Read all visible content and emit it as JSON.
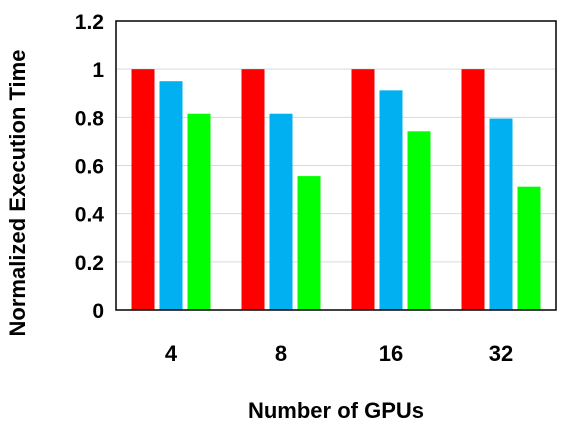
{
  "chart_data": {
    "type": "bar",
    "categories": [
      "4",
      "8",
      "16",
      "32"
    ],
    "series": [
      {
        "values": [
          1.0,
          1.0,
          1.0,
          1.0
        ],
        "color": "#ff0000"
      },
      {
        "values": [
          0.95,
          0.815,
          0.912,
          0.795
        ],
        "color": "#00b0f0"
      },
      {
        "values": [
          0.815,
          0.556,
          0.742,
          0.512
        ],
        "color": "#00ff00"
      }
    ],
    "xlabel": "Number of GPUs",
    "ylabel": "Normalized Execution Time",
    "ylim": [
      0,
      1.2
    ],
    "yticks": [
      0,
      0.2,
      0.4,
      0.6,
      0.8,
      1,
      1.2
    ],
    "ytick_labels": [
      "0",
      "0.2",
      "0.4",
      "0.6",
      "0.8",
      "1",
      "1.2"
    ],
    "grid": true,
    "grid_color": "#d9d9d9",
    "frame_color": "#000000",
    "legend": false
  }
}
